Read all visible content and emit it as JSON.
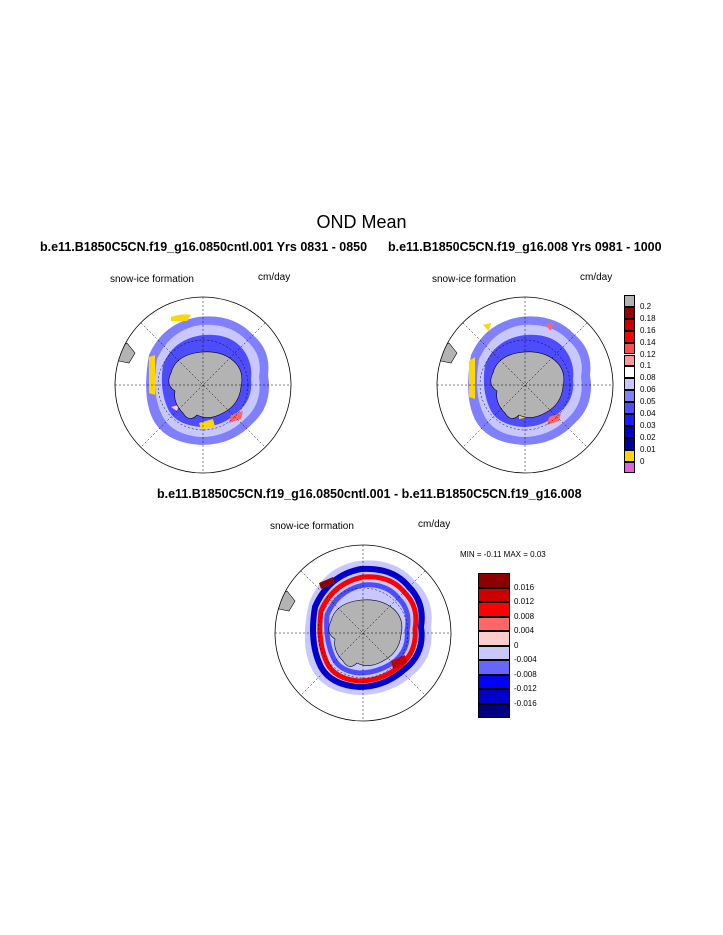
{
  "title": "OND Mean",
  "panels": [
    {
      "run_title": "b.e11.B1850C5CN.f19_g16.0850cntl.001  Yrs 0831 - 0850",
      "variable": "snow-ice formation",
      "units": "cm/day"
    },
    {
      "run_title": "b.e11.B1850C5CN.f19_g16.008  Yrs 0981 - 1000",
      "variable": "snow-ice formation",
      "units": "cm/day"
    },
    {
      "run_title": "b.e11.B1850C5CN.f19_g16.0850cntl.001 - b.e11.B1850C5CN.f19_g16.008",
      "variable": "snow-ice formation",
      "units": "cm/day",
      "min_label": "MIN =",
      "min_value": "-0.11",
      "max_label": "MAX =",
      "max_value": "0.03"
    }
  ],
  "legend_top": {
    "labels": [
      "0.2",
      "0.18",
      "0.16",
      "0.14",
      "0.12",
      "0.1",
      "0.08",
      "0.06",
      "0.05",
      "0.04",
      "0.03",
      "0.02",
      "0.01",
      "0"
    ],
    "colors": [
      "#b3b3b3",
      "#990000",
      "#cc0000",
      "#ff0000",
      "#ff4d4d",
      "#ff9999",
      "#ffffff",
      "#c8c8ff",
      "#8080ff",
      "#4d4dff",
      "#1a1aff",
      "#0000cc",
      "#00009a",
      "#ffd700",
      "#e060e0"
    ]
  },
  "legend_diff": {
    "labels": [
      "0.016",
      "0.012",
      "0.008",
      "0.004",
      "0",
      "-0.004",
      "-0.008",
      "-0.012",
      "-0.016"
    ],
    "colors": [
      "#8b0000",
      "#cc0000",
      "#ff0000",
      "#ff6666",
      "#ffcccc",
      "#c8c8ff",
      "#6666ff",
      "#0000ff",
      "#0000cc",
      "#000080"
    ]
  }
}
